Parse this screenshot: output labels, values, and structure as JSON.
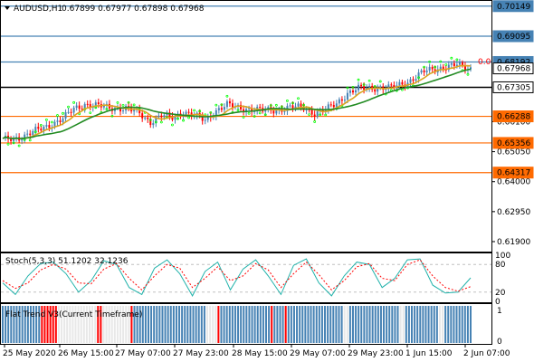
{
  "header": {
    "symbol": "AUDUSD,H1",
    "ohlc": "0.67899 0.67977 0.67898 0.67968"
  },
  "price_scale": {
    "tags": [
      {
        "value": "0.70149",
        "color": "#4682b4",
        "text_color": "#000000"
      },
      {
        "value": "0.69095",
        "color": "#4682b4",
        "text_color": "#000000"
      },
      {
        "value": "0.68192",
        "color": "#4682b4",
        "text_color": "#000000"
      },
      {
        "value": "0.67968",
        "color": "#ffffff",
        "text_color": "#000000"
      },
      {
        "value": "0.67305",
        "color": "#ffffff",
        "text_color": "#000000"
      },
      {
        "value": "0.66288",
        "color": "#ff6a00",
        "text_color": "#000000"
      },
      {
        "value": "0.65356",
        "color": "#ff6a00",
        "text_color": "#000000"
      },
      {
        "value": "0.64317",
        "color": "#ff6a00",
        "text_color": "#000000"
      }
    ],
    "ticks": [
      "0.66100",
      "0.65050",
      "0.64000",
      "0.62950",
      "0.61900"
    ],
    "fibo_label": "0.0"
  },
  "stoch": {
    "label": "Stoch(5,3,3) 51.1202 32.1236",
    "levels": [
      "100",
      "80",
      "20",
      "0"
    ]
  },
  "flat_trend": {
    "label": "Flat Trend V3(Current Timeframe)",
    "levels": [
      "1",
      "0"
    ]
  },
  "time_axis": [
    "25 May 2020",
    "26 May 15:00",
    "27 May 07:00",
    "27 May 23:00",
    "28 May 15:00",
    "29 May 07:00",
    "29 May 23:00",
    "1 Jun 15:00",
    "2 Jun 07:00"
  ],
  "colors": {
    "bull": "#4682b4",
    "bear": "#ff0000",
    "ma_fast": "#daa520",
    "ma_slow": "#228b22",
    "resistance": "#4682b4",
    "support": "#ff6a00",
    "pivot": "#000000",
    "stoch_main": "#20b2aa",
    "stoch_signal": "#ff0000",
    "psar": "#00ff00"
  },
  "chart_data": [
    {
      "type": "candlestick",
      "title": "AUDUSD,H1",
      "ylim": [
        0.6155,
        0.703
      ],
      "horizontal_levels": [
        0.70149,
        0.69095,
        0.68192,
        0.67968,
        0.67305,
        0.66288,
        0.65356,
        0.64317
      ],
      "close_path": [
        [
          0,
          0.6545
        ],
        [
          8,
          0.656
        ],
        [
          15,
          0.659
        ],
        [
          22,
          0.662
        ],
        [
          26,
          0.6655
        ],
        [
          30,
          0.6672
        ],
        [
          34,
          0.6665
        ],
        [
          40,
          0.666
        ],
        [
          45,
          0.6655
        ],
        [
          50,
          0.664
        ],
        [
          54,
          0.661
        ],
        [
          58,
          0.663
        ],
        [
          62,
          0.6625
        ],
        [
          66,
          0.6645
        ],
        [
          70,
          0.663
        ],
        [
          74,
          0.6615
        ],
        [
          78,
          0.665
        ],
        [
          82,
          0.6668
        ],
        [
          86,
          0.666
        ],
        [
          90,
          0.6655
        ],
        [
          95,
          0.6648
        ],
        [
          100,
          0.6652
        ],
        [
          106,
          0.666
        ],
        [
          110,
          0.666
        ],
        [
          114,
          0.664
        ],
        [
          118,
          0.665
        ],
        [
          122,
          0.6675
        ],
        [
          126,
          0.671
        ],
        [
          130,
          0.6725
        ],
        [
          136,
          0.673
        ],
        [
          142,
          0.6728
        ],
        [
          148,
          0.675
        ],
        [
          154,
          0.6785
        ],
        [
          160,
          0.68
        ],
        [
          166,
          0.6808
        ],
        [
          170,
          0.6797
        ]
      ]
    },
    {
      "type": "line",
      "title": "Stoch(5,3,3)",
      "ylim": [
        0,
        100
      ],
      "series": [
        {
          "name": "Stoch(5,3,3) 51.1202",
          "values": [
            40,
            15,
            55,
            82,
            85,
            60,
            20,
            45,
            88,
            80,
            30,
            15,
            72,
            90,
            60,
            12,
            65,
            85,
            25,
            70,
            90,
            55,
            15,
            78,
            92,
            40,
            12,
            55,
            85,
            80,
            30,
            50,
            90,
            92,
            35,
            18,
            20,
            51
          ]
        },
        {
          "values": [
            45,
            28,
            40,
            68,
            80,
            70,
            40,
            38,
            70,
            82,
            50,
            25,
            55,
            80,
            72,
            30,
            50,
            75,
            45,
            55,
            82,
            68,
            30,
            60,
            85,
            58,
            25,
            45,
            75,
            82,
            50,
            45,
            80,
            90,
            55,
            30,
            22,
            32
          ]
        }
      ]
    },
    {
      "type": "bar",
      "title": "Flat Trend V3(Current Timeframe)",
      "ylim": [
        0,
        1
      ],
      "series_state_runs": [
        [
          "up",
          14
        ],
        [
          "bear",
          6
        ],
        [
          "flat",
          14
        ],
        [
          "bear",
          2
        ],
        [
          "flat",
          10
        ],
        [
          "bear",
          1
        ],
        [
          "up",
          26
        ],
        [
          "flat",
          4
        ],
        [
          "bear",
          1
        ],
        [
          "up",
          18
        ],
        [
          "bear",
          1
        ],
        [
          "up",
          4
        ],
        [
          "bear",
          1
        ],
        [
          "up",
          20
        ],
        [
          "flat",
          2
        ],
        [
          "up",
          18
        ],
        [
          "flat",
          2
        ],
        [
          "up",
          12
        ],
        [
          "flat",
          2
        ],
        [
          "up",
          10
        ]
      ]
    }
  ]
}
